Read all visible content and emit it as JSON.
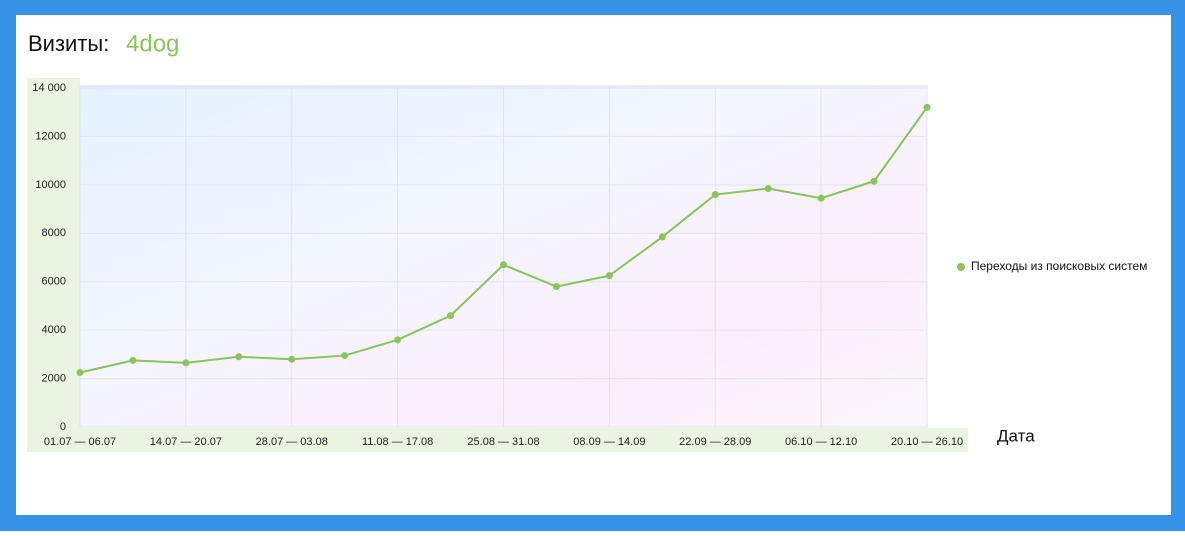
{
  "header": {
    "title": "Визиты:",
    "site": "4dog"
  },
  "chart_data": {
    "type": "line",
    "x_label": "Дата",
    "categories": [
      "01.07 — 06.07",
      null,
      "14.07 — 20.07",
      null,
      "28.07 — 03.08",
      null,
      "11.08 — 17.08",
      null,
      "25.08 — 31.08",
      null,
      "08.09 — 14.09",
      null,
      "22.09 — 28.09",
      null,
      "06.10 — 12.10",
      null,
      "20.10 — 26.10"
    ],
    "series": [
      {
        "name": "Переходы из поисковых систем",
        "color": "#8cc45a",
        "values": [
          2250,
          2750,
          2650,
          2900,
          2800,
          2950,
          3600,
          4600,
          6700,
          5800,
          6250,
          7850,
          9600,
          9850,
          9450,
          10150,
          13200
        ]
      }
    ],
    "ylim": [
      0,
      14000
    ],
    "yticks": [
      0,
      2000,
      4000,
      6000,
      8000,
      10000,
      12000,
      {
        "value": 14000,
        "label": "14 000"
      }
    ],
    "grid": true,
    "legend": "right"
  }
}
